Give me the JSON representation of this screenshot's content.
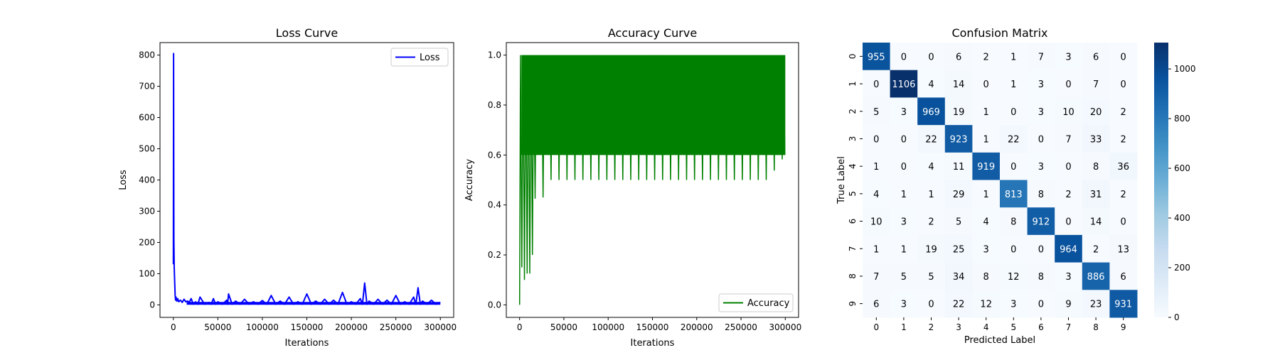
{
  "chart_data": [
    {
      "type": "line",
      "title": "Loss Curve",
      "xlabel": "Iterations",
      "ylabel": "Loss",
      "xlim": [
        -15000,
        315000
      ],
      "ylim": [
        -40,
        840
      ],
      "xticks": [
        0,
        50000,
        100000,
        150000,
        200000,
        250000,
        300000
      ],
      "yticks": [
        0,
        100,
        200,
        300,
        400,
        500,
        600,
        700,
        800
      ],
      "legend": {
        "position": "top-right",
        "entries": [
          "Loss"
        ]
      },
      "grid": false,
      "series": [
        {
          "name": "Loss",
          "color": "#0000ff",
          "x": [
            0,
            300,
            600,
            1000,
            1500,
            2000,
            2500,
            3000,
            4000,
            5000,
            6000,
            8000,
            10000,
            12000,
            14000,
            16000,
            18000,
            20000,
            25000,
            30000,
            40000,
            45000,
            50000,
            60000,
            62000,
            70000,
            80000,
            90000,
            100000,
            110000,
            120000,
            130000,
            140000,
            150000,
            160000,
            170000,
            180000,
            190000,
            200000,
            210000,
            215000,
            220000,
            230000,
            240000,
            250000,
            260000,
            270000,
            275000,
            280000,
            290000,
            300000
          ],
          "y": [
            130,
            805,
            210,
            120,
            70,
            30,
            15,
            25,
            12,
            20,
            10,
            15,
            8,
            18,
            10,
            12,
            9,
            20,
            10,
            25,
            8,
            20,
            10,
            15,
            35,
            12,
            18,
            10,
            14,
            30,
            12,
            25,
            10,
            35,
            12,
            18,
            15,
            40,
            10,
            20,
            70,
            12,
            18,
            15,
            30,
            10,
            25,
            55,
            12,
            15,
            8
          ]
        }
      ]
    },
    {
      "type": "line",
      "title": "Accuracy Curve",
      "xlabel": "Iterations",
      "ylabel": "Accuracy",
      "xlim": [
        -15000,
        315000
      ],
      "ylim": [
        -0.05,
        1.05
      ],
      "xticks": [
        0,
        50000,
        100000,
        150000,
        200000,
        250000,
        300000
      ],
      "yticks": [
        0.0,
        0.2,
        0.4,
        0.6,
        0.8,
        1.0
      ],
      "legend": {
        "position": "bottom-right",
        "entries": [
          "Accuracy"
        ]
      },
      "grid": false,
      "series": [
        {
          "name": "Accuracy",
          "color": "#008000",
          "x": [
            0,
            1000,
            3000,
            5000,
            8000,
            10000,
            12000,
            14000,
            16000,
            18000,
            20000,
            25000,
            30000,
            40000,
            50000,
            60000,
            80000,
            100000,
            120000,
            140000,
            160000,
            180000,
            200000,
            220000,
            240000,
            260000,
            280000,
            300000
          ],
          "y_min": [
            0.0,
            0.3,
            0.1,
            0.1,
            0.1,
            0.2,
            0.1,
            0.2,
            0.2,
            0.5,
            0.5,
            0.4,
            0.5,
            0.5,
            0.5,
            0.5,
            0.5,
            0.5,
            0.5,
            0.5,
            0.5,
            0.5,
            0.5,
            0.5,
            0.5,
            0.5,
            0.5,
            0.6
          ],
          "y_max": [
            0.0,
            1.0,
            1.0,
            1.0,
            1.0,
            1.0,
            1.0,
            1.0,
            1.0,
            1.0,
            1.0,
            1.0,
            1.0,
            1.0,
            1.0,
            1.0,
            1.0,
            1.0,
            1.0,
            1.0,
            1.0,
            1.0,
            1.0,
            1.0,
            1.0,
            1.0,
            1.0,
            1.0
          ]
        }
      ]
    },
    {
      "type": "heatmap",
      "title": "Confusion Matrix",
      "xlabel": "Predicted Label",
      "ylabel": "True Label",
      "x_categories": [
        "0",
        "1",
        "2",
        "3",
        "4",
        "5",
        "6",
        "7",
        "8",
        "9"
      ],
      "y_categories": [
        "0",
        "1",
        "2",
        "3",
        "4",
        "5",
        "6",
        "7",
        "8",
        "9"
      ],
      "values": [
        [
          955,
          0,
          0,
          6,
          2,
          1,
          7,
          3,
          6,
          0
        ],
        [
          0,
          1106,
          4,
          14,
          0,
          1,
          3,
          0,
          7,
          0
        ],
        [
          5,
          3,
          969,
          19,
          1,
          0,
          3,
          10,
          20,
          2
        ],
        [
          0,
          0,
          22,
          923,
          1,
          22,
          0,
          7,
          33,
          2
        ],
        [
          1,
          0,
          4,
          11,
          919,
          0,
          3,
          0,
          8,
          36
        ],
        [
          4,
          1,
          1,
          29,
          1,
          813,
          8,
          2,
          31,
          2
        ],
        [
          10,
          3,
          2,
          5,
          4,
          8,
          912,
          0,
          14,
          0
        ],
        [
          1,
          1,
          19,
          25,
          3,
          0,
          0,
          964,
          2,
          13
        ],
        [
          7,
          5,
          5,
          34,
          8,
          12,
          8,
          3,
          886,
          6
        ],
        [
          6,
          3,
          0,
          22,
          12,
          3,
          0,
          9,
          23,
          931
        ]
      ],
      "colorbar": {
        "min": 0,
        "max": 1106,
        "ticks": [
          0,
          200,
          400,
          600,
          800,
          1000
        ]
      },
      "colormap": [
        "#f7fbff",
        "#deebf7",
        "#c6dbef",
        "#9ecae1",
        "#6baed6",
        "#4292c6",
        "#2171b5",
        "#08519c",
        "#08306b"
      ]
    }
  ]
}
